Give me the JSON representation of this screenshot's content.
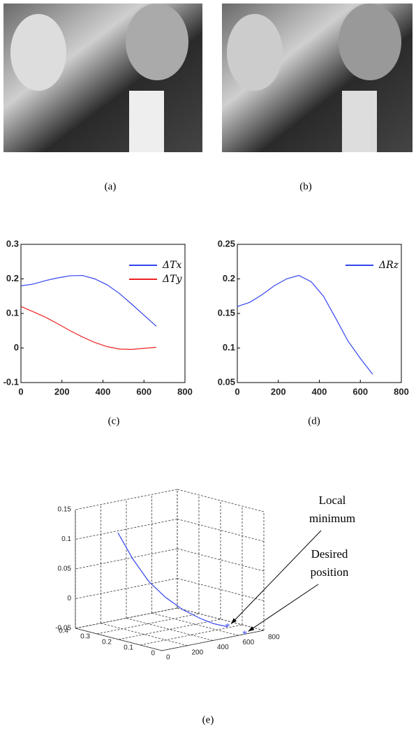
{
  "captions": [
    "(a)",
    "(b)",
    "(c)",
    "(d)",
    "(e)"
  ],
  "chart_data": [
    {
      "type": "line",
      "xlim": [
        0,
        800
      ],
      "xticks": [
        0,
        200,
        400,
        600,
        800
      ],
      "ylim": [
        -0.1,
        0.3
      ],
      "yticks": [
        -0.1,
        0,
        0.1,
        0.2,
        0.3
      ],
      "x": [
        0,
        60,
        120,
        180,
        240,
        300,
        360,
        420,
        480,
        540,
        600,
        660
      ],
      "series": [
        {
          "name": "ΔTx",
          "color": "#3344ee",
          "values": [
            0.18,
            0.185,
            0.195,
            0.203,
            0.209,
            0.21,
            0.2,
            0.183,
            0.158,
            0.127,
            0.095,
            0.063
          ]
        },
        {
          "name": "ΔTy",
          "color": "#ee2222",
          "values": [
            0.12,
            0.105,
            0.089,
            0.07,
            0.05,
            0.032,
            0.016,
            0.004,
            -0.003,
            -0.004,
            -0.001,
            0.002
          ]
        }
      ],
      "legend": "upper right"
    },
    {
      "type": "line",
      "xlim": [
        0,
        800
      ],
      "xticks": [
        0,
        200,
        400,
        600,
        800
      ],
      "ylim": [
        0.05,
        0.25
      ],
      "yticks": [
        0.05,
        0.1,
        0.15,
        0.2,
        0.25
      ],
      "x": [
        0,
        60,
        120,
        180,
        240,
        300,
        360,
        420,
        480,
        540,
        600,
        660
      ],
      "series": [
        {
          "name": "ΔRz",
          "color": "#3344ee",
          "values": [
            0.16,
            0.166,
            0.177,
            0.19,
            0.2,
            0.205,
            0.196,
            0.175,
            0.143,
            0.11,
            0.085,
            0.062
          ]
        }
      ],
      "legend": "upper right"
    },
    {
      "type": "line3d",
      "xlim": [
        0,
        0.4
      ],
      "xticks": [
        0,
        0.1,
        0.2,
        0.3,
        0.4
      ],
      "ylim": [
        0,
        800
      ],
      "yticks": [
        0,
        200,
        400,
        600,
        800
      ],
      "zlim": [
        -0.05,
        0.15
      ],
      "zticks": [
        -0.05,
        0,
        0.05,
        0.1,
        0.15
      ],
      "series": [
        {
          "color": "#3344ee",
          "x": [
            0.38,
            0.33,
            0.28,
            0.23,
            0.18,
            0.13,
            0.09,
            0.05
          ],
          "y": [
            300,
            330,
            370,
            420,
            470,
            520,
            560,
            600
          ],
          "z": [
            0.1,
            0.06,
            0.025,
            0,
            -0.018,
            -0.03,
            -0.037,
            -0.04
          ]
        }
      ],
      "markers": [
        {
          "x": 0.05,
          "y": 600,
          "z": -0.04,
          "label": [
            "Local",
            "minimum"
          ]
        },
        {
          "x": 0,
          "y": 650,
          "z": -0.05,
          "label": [
            "Desired",
            "position"
          ]
        }
      ]
    }
  ]
}
